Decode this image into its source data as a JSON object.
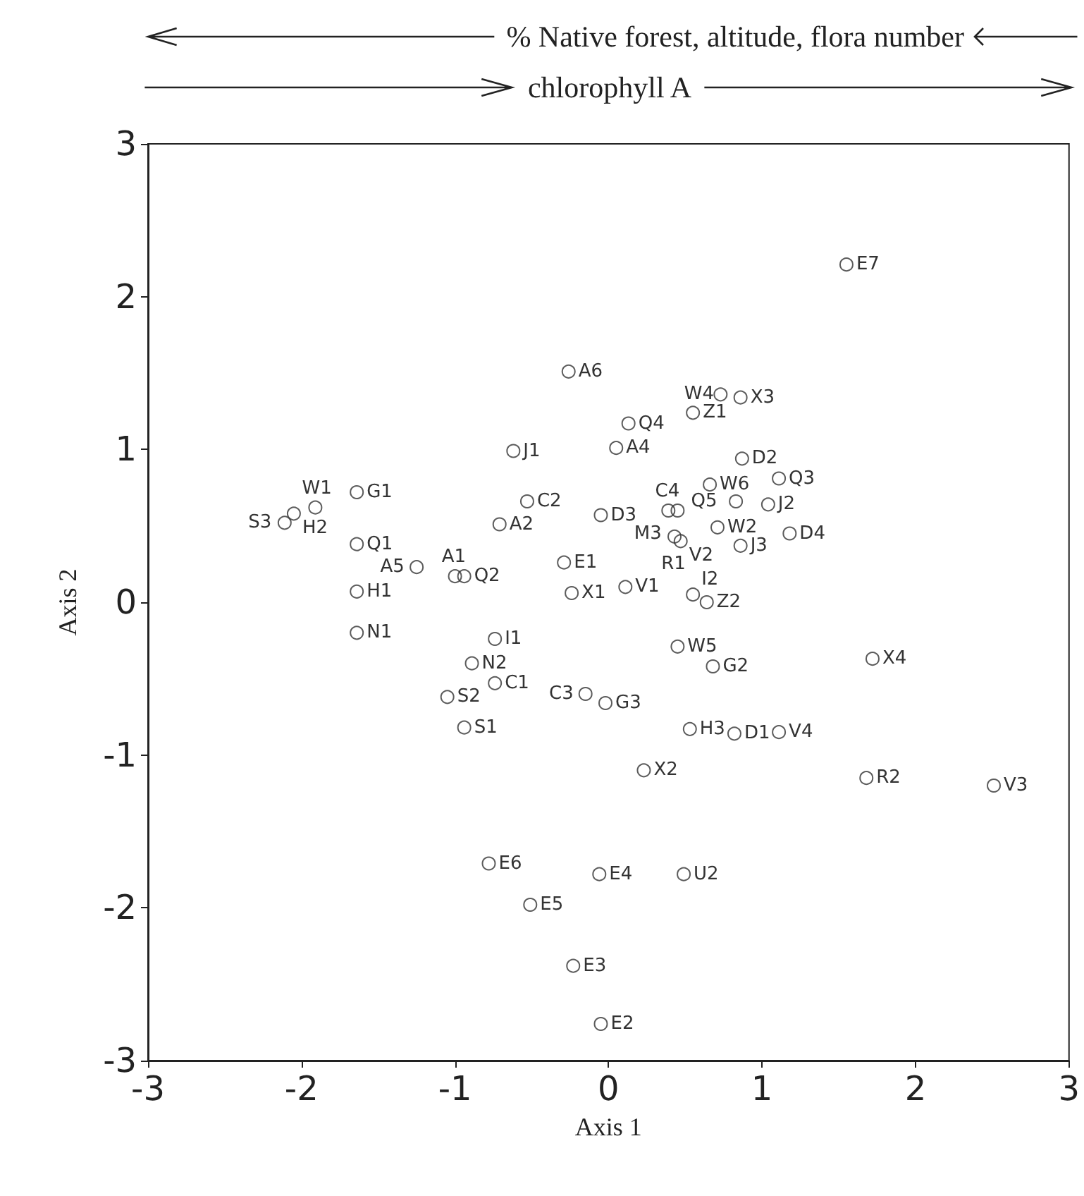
{
  "chart_data": {
    "type": "scatter",
    "xlabel": "Axis 1",
    "ylabel": "Axis 2",
    "xlim": [
      -3,
      3
    ],
    "xticks": [
      -3,
      -2,
      -1,
      0,
      1,
      2,
      3
    ],
    "ylim": [
      -3,
      3
    ],
    "yticks": [
      -3,
      -2,
      -1,
      0,
      1,
      2,
      3
    ],
    "grid": false,
    "marker": "circle",
    "series": [
      {
        "color": "#333333",
        "x": [
          1.55,
          -0.26,
          0.73,
          0.86,
          0.55,
          0.13,
          0.05,
          -0.62,
          0.87,
          1.11,
          0.66,
          0.83,
          1.04,
          -0.53,
          -0.05,
          -1.64,
          -1.91,
          -2.11,
          -2.05,
          -1.64,
          -0.71,
          -1.25,
          -1.0,
          -0.94,
          -0.29,
          -0.24,
          0.11,
          -1.64,
          -1.64,
          0.39,
          0.45,
          0.43,
          0.47,
          0.71,
          0.86,
          1.18,
          0.55,
          0.64,
          -0.74,
          -0.89,
          -0.74,
          -1.05,
          -0.94,
          -0.15,
          -0.02,
          0.45,
          0.68,
          1.72,
          0.53,
          0.82,
          1.11,
          0.23,
          1.68,
          2.51,
          -0.78,
          -0.06,
          0.49,
          -0.51,
          -0.23,
          -0.05
        ],
        "values": [
          2.21,
          1.51,
          1.36,
          1.34,
          1.24,
          1.17,
          1.01,
          0.99,
          0.94,
          0.81,
          0.77,
          0.66,
          0.64,
          0.66,
          0.57,
          0.72,
          0.62,
          0.52,
          0.58,
          0.38,
          0.51,
          0.23,
          0.17,
          0.17,
          0.26,
          0.06,
          0.1,
          0.07,
          -0.2,
          0.6,
          0.6,
          0.43,
          0.4,
          0.49,
          0.37,
          0.45,
          0.05,
          0.0,
          -0.24,
          -0.4,
          -0.53,
          -0.62,
          -0.82,
          -0.6,
          -0.66,
          -0.29,
          -0.42,
          -0.37,
          -0.83,
          -0.86,
          -0.85,
          -1.1,
          -1.15,
          -1.2,
          -1.71,
          -1.78,
          -1.78,
          -1.98,
          -2.38,
          -2.76
        ]
      }
    ],
    "annotations": [
      "% Native forest, altitude, flora number",
      "chlorophyll A",
      {
        "text": "E7",
        "x": 1.55,
        "y": 2.21
      },
      {
        "text": "A6",
        "x": -0.26,
        "y": 1.51
      },
      {
        "text": "W4",
        "x": 0.73,
        "y": 1.36
      },
      {
        "text": "X3",
        "x": 0.86,
        "y": 1.34
      },
      {
        "text": "Z1",
        "x": 0.55,
        "y": 1.24
      },
      {
        "text": "Q4",
        "x": 0.13,
        "y": 1.17
      },
      {
        "text": "A4",
        "x": 0.05,
        "y": 1.01
      },
      {
        "text": "J1",
        "x": -0.62,
        "y": 0.99
      },
      {
        "text": "D2",
        "x": 0.87,
        "y": 0.94
      },
      {
        "text": "Q3",
        "x": 1.11,
        "y": 0.81
      },
      {
        "text": "W6",
        "x": 0.66,
        "y": 0.77
      },
      {
        "text": "Q5",
        "x": 0.83,
        "y": 0.66
      },
      {
        "text": "J2",
        "x": 1.04,
        "y": 0.64
      },
      {
        "text": "C2",
        "x": -0.53,
        "y": 0.66
      },
      {
        "text": "D3",
        "x": -0.05,
        "y": 0.57
      },
      {
        "text": "G1",
        "x": -1.64,
        "y": 0.72
      },
      {
        "text": "W1",
        "x": -1.91,
        "y": 0.62
      },
      {
        "text": "S3",
        "x": -2.11,
        "y": 0.52
      },
      {
        "text": "H2",
        "x": -2.05,
        "y": 0.58
      },
      {
        "text": "Q1",
        "x": -1.64,
        "y": 0.38
      },
      {
        "text": "A2",
        "x": -0.71,
        "y": 0.51
      },
      {
        "text": "A5",
        "x": -1.25,
        "y": 0.23
      },
      {
        "text": "A1",
        "x": -1.0,
        "y": 0.17
      },
      {
        "text": "Q2",
        "x": -0.94,
        "y": 0.17
      },
      {
        "text": "E1",
        "x": -0.29,
        "y": 0.26
      },
      {
        "text": "X1",
        "x": -0.24,
        "y": 0.06
      },
      {
        "text": "V1",
        "x": 0.11,
        "y": 0.1
      },
      {
        "text": "H1",
        "x": -1.64,
        "y": 0.07
      },
      {
        "text": "N1",
        "x": -1.64,
        "y": -0.2
      },
      {
        "text": "C4",
        "x": 0.39,
        "y": 0.6
      },
      {
        "text": "M3",
        "x": 0.45,
        "y": 0.6
      },
      {
        "text": "R1",
        "x": 0.43,
        "y": 0.43
      },
      {
        "text": "V2",
        "x": 0.47,
        "y": 0.4
      },
      {
        "text": "W2",
        "x": 0.71,
        "y": 0.49
      },
      {
        "text": "J3",
        "x": 0.86,
        "y": 0.37
      },
      {
        "text": "D4",
        "x": 1.18,
        "y": 0.45
      },
      {
        "text": "I2",
        "x": 0.55,
        "y": 0.05
      },
      {
        "text": "Z2",
        "x": 0.64,
        "y": 0.0
      },
      {
        "text": "I1",
        "x": -0.74,
        "y": -0.24
      },
      {
        "text": "N2",
        "x": -0.89,
        "y": -0.4
      },
      {
        "text": "C1",
        "x": -0.74,
        "y": -0.53
      },
      {
        "text": "S2",
        "x": -1.05,
        "y": -0.62
      },
      {
        "text": "S1",
        "x": -0.94,
        "y": -0.82
      },
      {
        "text": "C3",
        "x": -0.15,
        "y": -0.6
      },
      {
        "text": "G3",
        "x": -0.02,
        "y": -0.66
      },
      {
        "text": "W5",
        "x": 0.45,
        "y": -0.29
      },
      {
        "text": "G2",
        "x": 0.68,
        "y": -0.42
      },
      {
        "text": "X4",
        "x": 1.72,
        "y": -0.37
      },
      {
        "text": "H3",
        "x": 0.53,
        "y": -0.83
      },
      {
        "text": "D1",
        "x": 0.82,
        "y": -0.86
      },
      {
        "text": "V4",
        "x": 1.11,
        "y": -0.85
      },
      {
        "text": "X2",
        "x": 0.23,
        "y": -1.1
      },
      {
        "text": "R2",
        "x": 1.68,
        "y": -1.15
      },
      {
        "text": "V3",
        "x": 2.51,
        "y": -1.2
      },
      {
        "text": "E6",
        "x": -0.78,
        "y": -1.71
      },
      {
        "text": "E4",
        "x": -0.06,
        "y": -1.78
      },
      {
        "text": "U2",
        "x": 0.49,
        "y": -1.78
      },
      {
        "text": "E5",
        "x": -0.51,
        "y": -1.98
      },
      {
        "text": "E3",
        "x": -0.23,
        "y": -2.38
      },
      {
        "text": "E2",
        "x": -0.05,
        "y": -2.76
      }
    ]
  }
}
